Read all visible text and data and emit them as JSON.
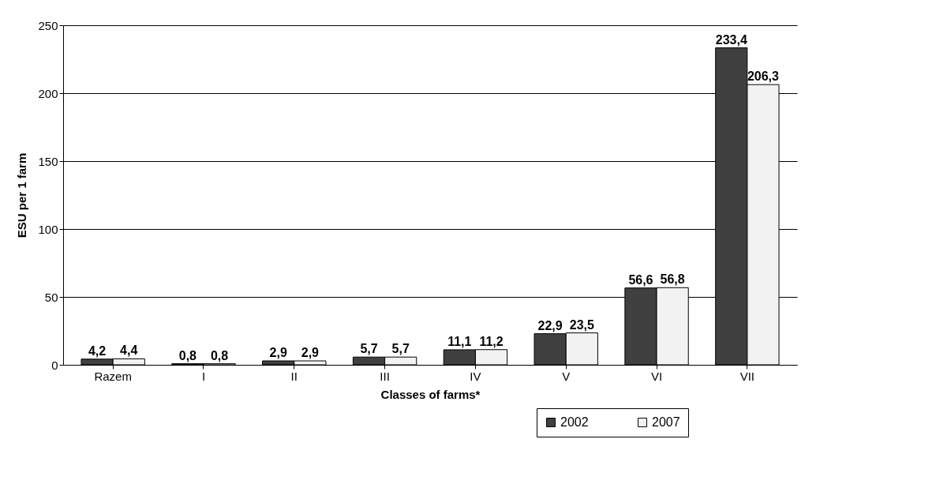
{
  "chart_data": {
    "type": "bar",
    "xlabel": "Classes of farms*",
    "ylabel": "ESU per 1 farm",
    "categories": [
      "Razem",
      "I",
      "II",
      "III",
      "IV",
      "V",
      "VI",
      "VII"
    ],
    "series": [
      {
        "name": "2002",
        "color": "#404040",
        "values": [
          4.2,
          0.8,
          2.9,
          5.7,
          11.1,
          22.9,
          56.6,
          233.4
        ],
        "value_labels": [
          "4,2",
          "0,8",
          "2,9",
          "5,7",
          "11,1",
          "22,9",
          "56,6",
          "233,4"
        ]
      },
      {
        "name": "2007",
        "color": "#f2f2f2",
        "values": [
          4.4,
          0.8,
          2.9,
          5.7,
          11.2,
          23.5,
          56.8,
          206.3
        ],
        "value_labels": [
          "4,4",
          "0,8",
          "2,9",
          "5,7",
          "11,2",
          "23,5",
          "56,8",
          "206,3"
        ]
      }
    ],
    "ylim": [
      0,
      250
    ],
    "yticks": [
      0,
      50,
      100,
      150,
      200,
      250
    ],
    "grid": "y",
    "legend": "bottom right"
  }
}
